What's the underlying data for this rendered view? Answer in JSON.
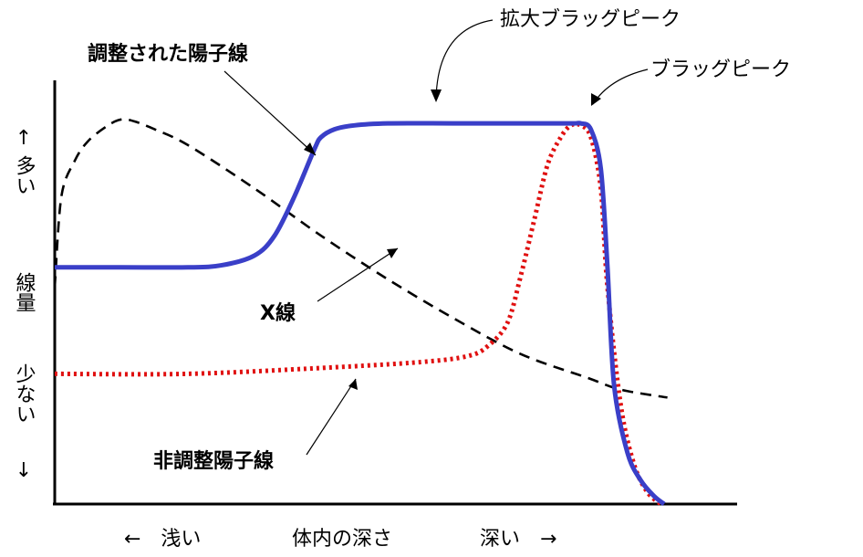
{
  "chart_data": {
    "type": "line",
    "title": "",
    "xlabel": "体内の深さ",
    "x_left_label": "←　浅い",
    "x_right_label": "深い　→",
    "ylabel": "線量",
    "y_top_label": "多い",
    "y_bottom_label": "少ない",
    "y_up_arrow": "↑",
    "y_down_arrow": "↓",
    "xlim": [
      0,
      100
    ],
    "ylim": [
      0,
      100
    ],
    "grid": false,
    "series": [
      {
        "name": "調整された陽子線",
        "style": "solid",
        "color": "#3a3fc8",
        "x": [
          0,
          10,
          20,
          25,
          30,
          33,
          36,
          39,
          40,
          42,
          45,
          50,
          60,
          70,
          75,
          78,
          79,
          80.5,
          82,
          83,
          84,
          86,
          88,
          90,
          91.5
        ],
        "y": [
          60,
          60,
          60,
          60.5,
          63,
          68,
          78,
          90,
          93,
          95,
          96,
          96.5,
          96.5,
          96.5,
          96.5,
          96.5,
          96.5,
          95,
          85,
          60,
          30,
          13,
          6,
          2,
          0
        ]
      },
      {
        "name": "非調整陽子線",
        "style": "dotted",
        "color": "#e01010",
        "x": [
          0,
          20,
          40,
          55,
          62,
          65,
          68,
          70,
          72,
          74,
          76,
          77.5,
          79,
          80.5,
          82,
          83,
          85,
          87,
          89,
          91
        ],
        "y": [
          33,
          33,
          34.5,
          36,
          37.5,
          40,
          46,
          58,
          72,
          86,
          93,
          96,
          96,
          93,
          80,
          55,
          25,
          10,
          3,
          0
        ]
      },
      {
        "name": "X線",
        "style": "dashed",
        "color": "#000000",
        "x": [
          0,
          1,
          3,
          5,
          8,
          10,
          12,
          15,
          20,
          30,
          40,
          50,
          60,
          70,
          80,
          85,
          92
        ],
        "y": [
          55,
          78,
          87,
          92,
          96,
          97.5,
          97,
          95,
          91,
          80,
          68,
          57,
          47,
          38,
          32,
          29,
          27
        ]
      }
    ],
    "annotations": [
      {
        "text": "調整された陽子線",
        "target_series": "調整された陽子線"
      },
      {
        "text": "X線",
        "target_series": "X線"
      },
      {
        "text": "非調整陽子線",
        "target_series": "非調整陽子線"
      },
      {
        "text": "拡大ブラッグピーク",
        "target_series": "調整された陽子線"
      },
      {
        "text": "ブラッグピーク",
        "target_series": "非調整陽子線"
      }
    ]
  }
}
